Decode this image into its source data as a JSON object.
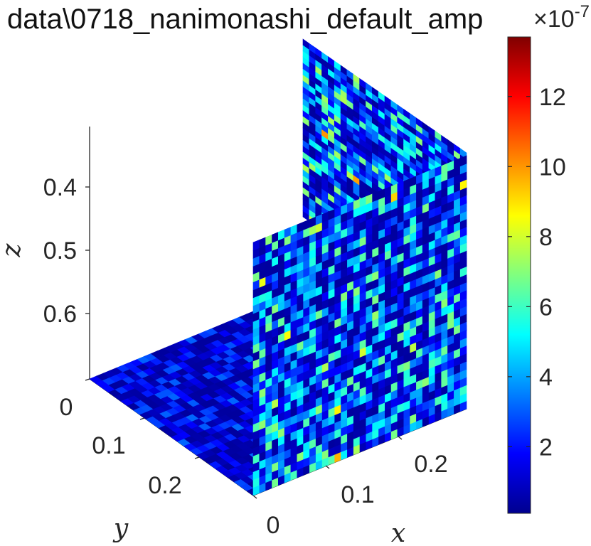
{
  "chart_data": {
    "type": "heatmap",
    "title": "data\\0718_nanimonashi_default_amp",
    "xlabel": "x",
    "ylabel": "y",
    "zlabel": "z",
    "x_ticks": [
      "0",
      "0.1",
      "0.2"
    ],
    "y_ticks": [
      "0",
      "0.1",
      "0.2"
    ],
    "z_ticks": [
      "0.4",
      "0.5",
      "0.6"
    ],
    "z_direction": "reversed",
    "colormap": "jet",
    "colorbar": {
      "ticks": [
        "2",
        "4",
        "6",
        "8",
        "10",
        "12"
      ],
      "exponent_label": "×10",
      "exponent_value": "-7",
      "range": [
        0.1,
        13.7
      ]
    },
    "slices": [
      {
        "plane": "xy",
        "description_value_range": [
          0.5,
          5.5
        ]
      },
      {
        "plane": "xz",
        "description_value_range": [
          0.5,
          12.5
        ]
      },
      {
        "plane": "yz",
        "description_value_range": [
          0.5,
          13.5
        ]
      }
    ],
    "grid": false,
    "legend": "none"
  }
}
